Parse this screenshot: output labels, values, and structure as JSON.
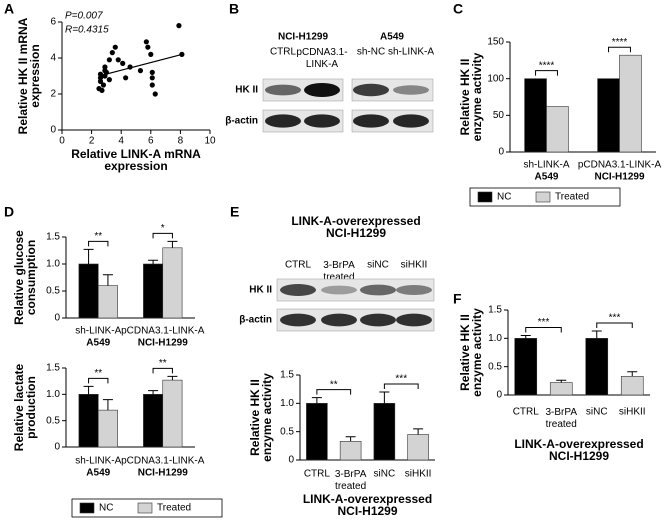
{
  "panels": [
    "A",
    "B",
    "C",
    "D",
    "E",
    "F"
  ],
  "chart_data": [
    {
      "type": "scatter",
      "x_label": "Relative LINK-A mRNA\nexpression",
      "y_label": "Relative HK II mRNA\nexpression",
      "annotations": [
        "P=0.007",
        "R=0.4315"
      ],
      "color": "#000000",
      "x": [
        2.6,
        2.6,
        2.8,
        2.5,
        2.7,
        2.9,
        2.9,
        3.0,
        3.2,
        3.4,
        3.6,
        3.8,
        4.1,
        4.3,
        4.6,
        5.3,
        5.7,
        5.8,
        6.0,
        6.1,
        6.1,
        6.1,
        6.3,
        7.9,
        8.1,
        3.2,
        2.6,
        2.9
      ],
      "y": [
        3.1,
        2.9,
        2.5,
        2.3,
        2.2,
        3.5,
        3.3,
        3.2,
        3.9,
        4.3,
        4.6,
        3.9,
        3.7,
        2.9,
        3.5,
        3.3,
        4.9,
        4.6,
        4.2,
        3.2,
        2.9,
        2.5,
        2.0,
        5.8,
        4.2,
        2.8,
        2.7,
        3.0
      ],
      "trend": {
        "x": [
          2.5,
          8.1
        ],
        "y": [
          3.0,
          4.2
        ]
      },
      "xlim": [
        0,
        10
      ],
      "ylim": [
        0,
        6
      ],
      "xticks": [
        0,
        2,
        4,
        6,
        8,
        10
      ],
      "yticks": [
        0,
        2,
        4,
        6
      ]
    },
    {
      "type": "bar",
      "y_label": "Relative HK II\nenzyme activity",
      "categories": [
        "sh-LINK-A",
        "pCDNA3.1-LINK-A"
      ],
      "category_groups": [
        "A549",
        "NCI-H1299"
      ],
      "series": [
        {
          "name": "NC",
          "color": "#000000",
          "values": [
            100,
            100
          ]
        },
        {
          "name": "Treated",
          "color": "#d3d3d3",
          "values": [
            62,
            132
          ]
        }
      ],
      "significance": [
        "****",
        "****"
      ],
      "ylim": [
        0,
        150
      ],
      "yticks": [
        0,
        50,
        100,
        150
      ],
      "legend": "bottom"
    },
    {
      "type": "bar",
      "y_label": "Relative glucose\nconsumption",
      "categories": [
        "sh-LINK-A",
        "pCDNA3.1-LINK-A"
      ],
      "category_groups": [
        "A549",
        "NCI-H1299"
      ],
      "series": [
        {
          "color": "#000000",
          "values": [
            1.0,
            1.0
          ],
          "errors": [
            0.27,
            0.07
          ]
        },
        {
          "color": "#d3d3d3",
          "values": [
            0.6,
            1.3
          ],
          "errors": [
            0.2,
            0.12
          ]
        }
      ],
      "significance": [
        "**",
        "*"
      ],
      "ylim": [
        0,
        1.5
      ],
      "yticks": [
        0,
        0.5,
        {
          "value": 1,
          "label": "1.0"
        },
        1.5
      ]
    },
    {
      "type": "bar",
      "y_label": "Relative lactate\nproduction",
      "categories": [
        "sh-LINK-A",
        "pCDNA3.1-LINK-A"
      ],
      "category_groups": [
        "A549",
        "NCI-H1299"
      ],
      "series": [
        {
          "name": "NC",
          "color": "#000000",
          "values": [
            1.0,
            1.0
          ],
          "errors": [
            0.15,
            0.07
          ]
        },
        {
          "name": "Treated",
          "color": "#d3d3d3",
          "values": [
            0.7,
            1.27
          ],
          "errors": [
            0.2,
            0.07
          ]
        }
      ],
      "significance": [
        "**",
        "**"
      ],
      "ylim": [
        0,
        1.5
      ],
      "yticks": [
        0,
        0.5,
        {
          "value": 1,
          "label": "1.0"
        },
        1.5
      ],
      "legend": "bottom"
    },
    {
      "type": "pairbar",
      "y_label": "Relative HK II\nenzyme activity",
      "x_label": "LINK-A-overexpressed\nNCI-H1299",
      "categories": [
        "CTRL",
        "3-BrPA\ntreated",
        "siNC",
        "siHKII"
      ],
      "values": [
        1.0,
        0.33,
        1.0,
        0.45
      ],
      "errors": [
        0.1,
        0.08,
        0.2,
        0.1
      ],
      "colors": [
        "#000000",
        "#d3d3d3",
        "#000000",
        "#d3d3d3"
      ],
      "significance": [
        "**",
        "***"
      ],
      "ylim": [
        0,
        1.5
      ],
      "yticks": [
        0,
        0.5,
        {
          "value": 1,
          "label": "1.0"
        },
        1.5
      ]
    },
    {
      "type": "pairbar",
      "y_label": "Relative HK II\nenzyme activity",
      "x_label": "LINK-A-overexpressed\nNCI-H1299",
      "categories": [
        "CTRL",
        "3-BrPA\ntreated",
        "siNC",
        "siHKII"
      ],
      "values": [
        1.0,
        0.22,
        1.0,
        0.33
      ],
      "errors": [
        0.05,
        0.04,
        0.13,
        0.08
      ],
      "colors": [
        "#000000",
        "#d3d3d3",
        "#000000",
        "#d3d3d3"
      ],
      "significance": [
        "***",
        "***"
      ],
      "ylim": [
        0,
        1.5
      ],
      "yticks": [
        0,
        0.5,
        {
          "value": 1,
          "label": "1.0"
        },
        1.5
      ]
    }
  ],
  "blots": [
    {
      "groups": [
        "NCI-H1299",
        "A549"
      ],
      "lanes": [
        "CTRL",
        "pCDNA3.1-\nLINK-A",
        "sh-NC",
        "sh-LINK-A"
      ],
      "rows": [
        "HK II",
        "β-actin"
      ]
    },
    {
      "title": "LINK-A-overexpressed\nNCI-H1299",
      "lanes": [
        "CTRL",
        "3-BrPA\ntreated",
        "siNC",
        "siHKII"
      ],
      "rows": [
        "HK II",
        "β-actin"
      ]
    }
  ]
}
